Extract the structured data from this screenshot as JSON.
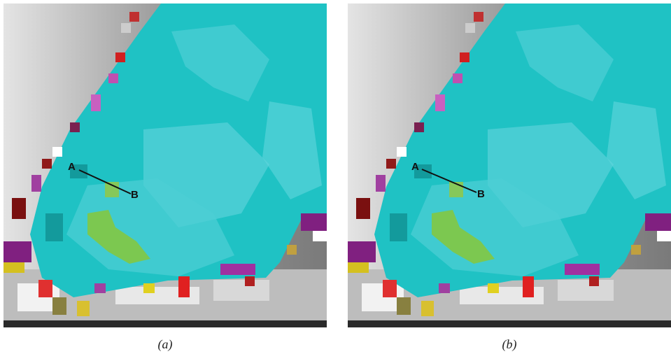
{
  "panels": [
    {
      "point_a": "A",
      "point_b": "B",
      "caption": "(a)"
    },
    {
      "point_a": "A",
      "point_b": "B",
      "caption": "(b)"
    }
  ]
}
